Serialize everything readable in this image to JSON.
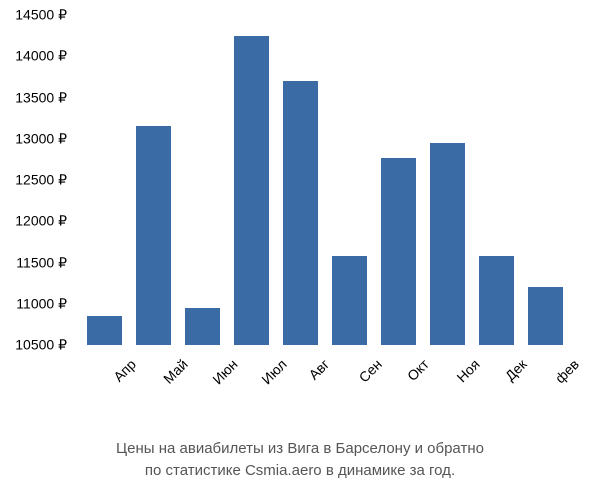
{
  "chart": {
    "type": "bar",
    "categories": [
      "Апр",
      "Май",
      "Июн",
      "Июл",
      "Авг",
      "Сен",
      "Окт",
      "Ноя",
      "Дек",
      "фев"
    ],
    "values": [
      10850,
      13150,
      10950,
      14250,
      13700,
      11580,
      12770,
      12950,
      11580,
      11200
    ],
    "bar_color": "#3b6ba5",
    "background_color": "#ffffff",
    "ylim": [
      10500,
      14500
    ],
    "ytick_step": 500,
    "ytick_suffix": " ₽",
    "yticks": [
      "10500 ₽",
      "11000 ₽",
      "11500 ₽",
      "12000 ₽",
      "12500 ₽",
      "13000 ₽",
      "13500 ₽",
      "14000 ₽",
      "14500 ₽"
    ],
    "bar_width_ratio": 0.72,
    "label_fontsize": 14,
    "caption_fontsize": 15,
    "caption_color": "#555555",
    "text_color": "#000000",
    "caption_line1": "Цены на авиабилеты из Вига в Барселону и обратно",
    "caption_line2": "по статистике Csmia.aero в динамике за год."
  }
}
